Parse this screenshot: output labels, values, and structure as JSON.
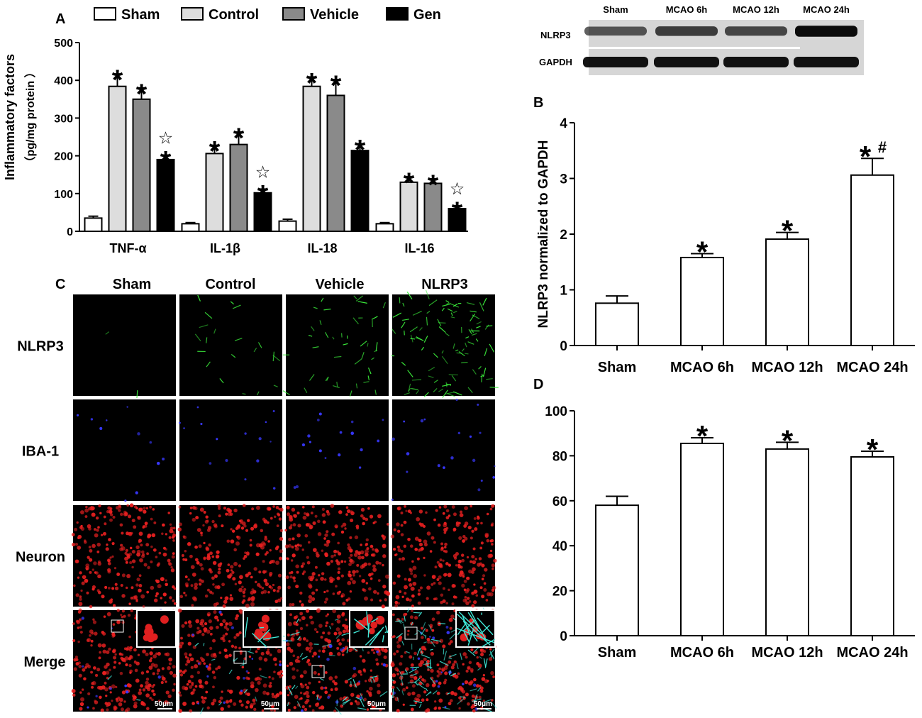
{
  "chart_data": [
    {
      "panel": "A",
      "type": "bar",
      "ylabel_lines": [
        "Inflammatory factors",
        "（pg/mg protein ）"
      ],
      "ylim": [
        0,
        500
      ],
      "yticks": [
        0,
        100,
        200,
        300,
        400,
        500
      ],
      "categories": [
        "TNF-α",
        "IL-1β",
        "IL-18",
        "IL-16"
      ],
      "series": [
        {
          "name": "Sham",
          "fill": "#ffffff",
          "values": [
            35,
            20,
            27,
            20
          ],
          "errors": [
            5,
            3,
            5,
            3
          ],
          "marks": [
            "",
            "",
            "",
            ""
          ]
        },
        {
          "name": "Control",
          "fill": "#dddddd",
          "values": [
            384,
            206,
            384,
            130
          ],
          "errors": [
            33,
            22,
            25,
            15
          ],
          "marks": [
            "*",
            "*",
            "*",
            "*"
          ]
        },
        {
          "name": "Vehicle",
          "fill": "#8a8a8a",
          "values": [
            350,
            230,
            360,
            127
          ],
          "errors": [
            30,
            33,
            42,
            12
          ],
          "marks": [
            "*",
            "*",
            "*",
            "*"
          ]
        },
        {
          "name": "Gen",
          "fill": "#000000",
          "values": [
            190,
            102,
            214,
            60
          ],
          "errors": [
            12,
            10,
            18,
            8
          ],
          "marks": [
            "*☆",
            "*☆",
            "*",
            "*☆"
          ]
        }
      ]
    },
    {
      "panel": "B",
      "type": "bar",
      "ylabel": "NLRP3 normalized to GAPDH",
      "ylim": [
        0,
        4
      ],
      "yticks": [
        0,
        1,
        2,
        3,
        4
      ],
      "categories": [
        "Sham",
        "MCAO 6h",
        "MCAO 12h",
        "MCAO 24h"
      ],
      "values": [
        0.76,
        1.58,
        1.91,
        3.06
      ],
      "errors": [
        0.13,
        0.07,
        0.12,
        0.3
      ],
      "marks": [
        "",
        "*",
        "*",
        "*#"
      ]
    },
    {
      "panel": "D",
      "type": "bar",
      "ylabel": "",
      "ylim": [
        0,
        100
      ],
      "yticks": [
        0,
        20,
        40,
        60,
        80,
        100
      ],
      "categories": [
        "Sham",
        "MCAO 6h",
        "MCAO 12h",
        "MCAO 24h"
      ],
      "values": [
        58,
        85.5,
        83,
        79.5
      ],
      "errors": [
        4,
        2.5,
        3,
        2.5
      ],
      "marks": [
        "",
        "*",
        "*",
        "*"
      ]
    }
  ],
  "blot": {
    "columns": [
      "Sham",
      "MCAO 6h",
      "MCAO 12h",
      "MCAO 24h"
    ],
    "rows": [
      "NLRP3",
      "GAPDH"
    ],
    "nlrp3_band_intensity": [
      0.62,
      0.72,
      0.68,
      0.95
    ],
    "gapdh_band_intensity": [
      0.92,
      0.92,
      0.92,
      0.92
    ]
  },
  "micrographs": {
    "panel": "C",
    "columns": [
      "Sham",
      "Control",
      "Vehicle",
      "NLRP3"
    ],
    "rows": [
      {
        "label": "NLRP3",
        "color": "#4cff4c",
        "density": [
          0.02,
          0.18,
          0.38,
          0.9
        ]
      },
      {
        "label": "IBA-1",
        "color": "#3c3cff",
        "density": [
          0.35,
          0.5,
          0.55,
          0.65
        ]
      },
      {
        "label": "Neuron",
        "color": "#ff2a2a",
        "density": [
          0.85,
          0.85,
          0.85,
          0.85
        ]
      },
      {
        "label": "Merge",
        "color": "#ff3030",
        "density": [
          0.6,
          0.6,
          0.6,
          0.6
        ]
      }
    ],
    "scale_bar": "50μm"
  },
  "panel_letters": {
    "a": "A",
    "b": "B",
    "c": "C",
    "d": "D"
  }
}
